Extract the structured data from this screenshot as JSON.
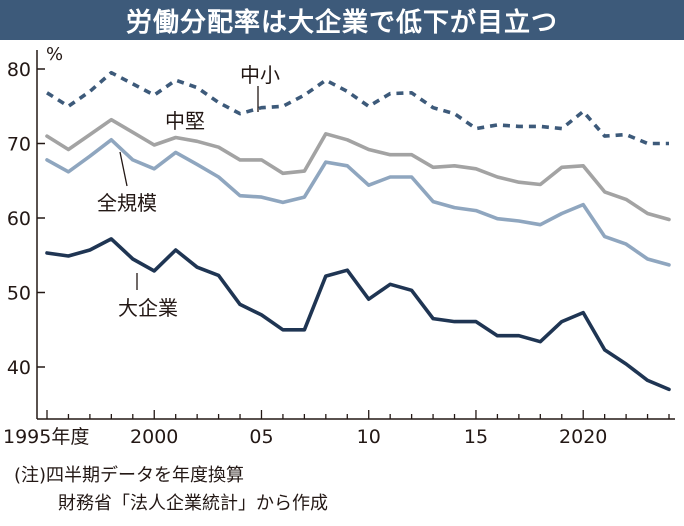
{
  "title": "労働分配率は大企業で低下が目立つ",
  "notes": [
    "(注)四半期データを年度換算",
    "財務省「法人企業統計」から作成"
  ],
  "chart_data": {
    "type": "line",
    "title": "労働分配率は大企業で低下が目立つ",
    "ylabel": "%",
    "ylim": [
      35,
      82
    ],
    "xlim": [
      1995,
      2024
    ],
    "y_ticks": [
      40,
      50,
      60,
      70,
      80
    ],
    "x_ticks": [
      {
        "value": 1995,
        "label": "1995年度"
      },
      {
        "value": 2000,
        "label": "2000"
      },
      {
        "value": 2005,
        "label": "05"
      },
      {
        "value": 2010,
        "label": "10"
      },
      {
        "value": 2015,
        "label": "15"
      },
      {
        "value": 2020,
        "label": "2020"
      }
    ],
    "x": [
      1995,
      1996,
      1997,
      1998,
      1999,
      2000,
      2001,
      2002,
      2003,
      2004,
      2005,
      2006,
      2007,
      2008,
      2009,
      2010,
      2011,
      2012,
      2013,
      2014,
      2015,
      2016,
      2017,
      2018,
      2019,
      2020,
      2021,
      2022,
      2023,
      2024
    ],
    "series": [
      {
        "name": "中小",
        "color": "#3d5a7a",
        "dash": true,
        "values": [
          76.8,
          75.0,
          77.0,
          79.5,
          78.0,
          76.5,
          78.5,
          77.5,
          75.5,
          74.0,
          74.8,
          75.0,
          76.5,
          78.5,
          77.0,
          75.0,
          76.7,
          76.8,
          74.8,
          74.0,
          72.0,
          72.5,
          72.3,
          72.3,
          72.0,
          74.3,
          71.0,
          71.2,
          70.0,
          70.0
        ]
      },
      {
        "name": "中堅",
        "color": "#a3a3a3",
        "dash": false,
        "values": [
          71.0,
          69.2,
          71.2,
          73.2,
          71.5,
          69.8,
          70.8,
          70.3,
          69.5,
          67.8,
          67.8,
          66.0,
          66.3,
          71.3,
          70.5,
          69.2,
          68.5,
          68.5,
          66.8,
          67.0,
          66.6,
          65.5,
          64.8,
          64.5,
          66.8,
          67.0,
          63.5,
          62.5,
          60.6,
          59.8
        ]
      },
      {
        "name": "全規模",
        "color": "#8fa6bf",
        "dash": false,
        "values": [
          67.8,
          66.2,
          68.3,
          70.5,
          67.8,
          66.6,
          68.8,
          67.2,
          65.5,
          63.0,
          62.8,
          62.1,
          62.8,
          67.5,
          67.0,
          64.4,
          65.5,
          65.5,
          62.2,
          61.4,
          61.0,
          59.9,
          59.6,
          59.1,
          60.6,
          61.8,
          57.5,
          56.5,
          54.5,
          53.7
        ]
      },
      {
        "name": "大企業",
        "color": "#1f3553",
        "dash": false,
        "values": [
          55.3,
          54.9,
          55.7,
          57.2,
          54.5,
          52.9,
          55.7,
          53.4,
          52.3,
          48.4,
          47.0,
          45.0,
          45.0,
          52.2,
          53.0,
          49.1,
          51.1,
          50.3,
          46.5,
          46.1,
          46.1,
          44.2,
          44.2,
          43.4,
          46.1,
          47.3,
          42.3,
          40.4,
          38.2,
          37.0
        ]
      }
    ],
    "legend": "inline labels",
    "grid": false
  }
}
